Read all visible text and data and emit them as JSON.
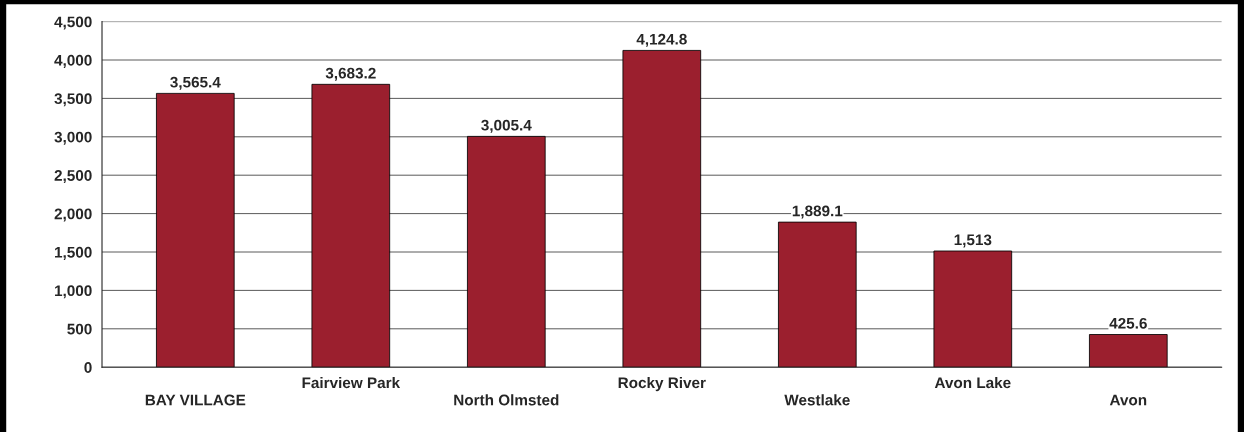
{
  "chart_data": {
    "type": "bar",
    "categories": [
      "BAY VILLAGE",
      "Fairview Park",
      "North Olmsted",
      "Rocky River",
      "Westlake",
      "Avon Lake",
      "Avon"
    ],
    "values": [
      3565.4,
      3683.2,
      3005.4,
      4124.8,
      1889.1,
      1513,
      425.6
    ],
    "value_labels": [
      "3,565.4",
      "3,683.2",
      "3,005.4",
      "4,124.8",
      "1,889.1",
      "1,513",
      "425.6"
    ],
    "color": "#9b1f2e",
    "ylim": [
      0,
      4500
    ],
    "yticks": [
      0,
      500,
      {
        "value": 1000,
        "label": "1,000"
      },
      {
        "value": 1500,
        "label": "1,500"
      },
      {
        "value": 2000,
        "label": "2,000"
      },
      {
        "value": 2500,
        "label": "2,500"
      },
      {
        "value": 3000,
        "label": "3,000"
      },
      {
        "value": 3500,
        "label": "3,500"
      },
      {
        "value": 4000,
        "label": "4,000"
      },
      {
        "value": 4500,
        "label": "4,500"
      }
    ],
    "grid": "y"
  }
}
